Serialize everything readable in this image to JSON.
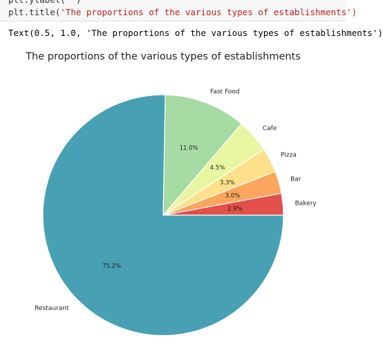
{
  "code": {
    "line1": "plt.ylabel('')",
    "line2_prefix": "plt.title(",
    "line2_string": "'The proportions of the various types of establishments')"
  },
  "output": {
    "text": "Text(0.5, 1.0, 'The proportions of the various types of establishments')"
  },
  "chart_data": {
    "type": "pie",
    "title": "The proportions of the various types of establishments",
    "start_angle_deg": 0,
    "direction": "counterclockwise",
    "slices": [
      {
        "label": "Bakery",
        "value": 2.9,
        "pct_label": "2.9%",
        "color": "#e34f4b"
      },
      {
        "label": "Bar",
        "value": 3.0,
        "pct_label": "3.0%",
        "color": "#fca55d"
      },
      {
        "label": "Pizza",
        "value": 3.3,
        "pct_label": "3.3%",
        "color": "#fee08b"
      },
      {
        "label": "Cafe",
        "value": 4.5,
        "pct_label": "4.5%",
        "color": "#e9f6a1"
      },
      {
        "label": "Fast Food",
        "value": 11.0,
        "pct_label": "11.0%",
        "color": "#a7dba4"
      },
      {
        "label": "Restaurant",
        "value": 75.2,
        "pct_label": "75.2%",
        "color": "#47a0b4"
      }
    ]
  }
}
